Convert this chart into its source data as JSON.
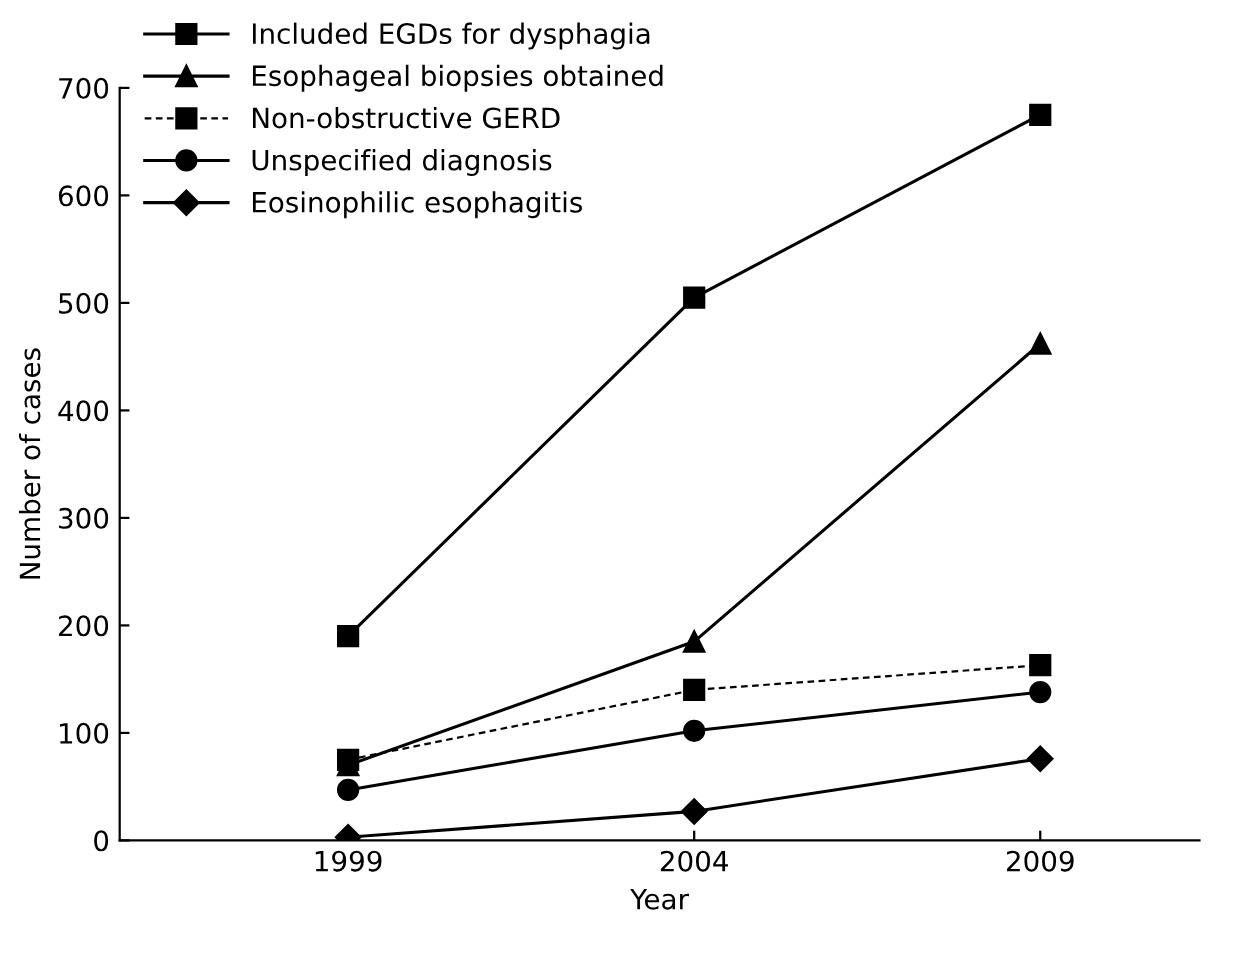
{
  "chart_data": {
    "type": "line",
    "xlabel": "Year",
    "ylabel": "Number of cases",
    "x": [
      1999,
      2004,
      2009
    ],
    "xlim": [
      1995.7,
      2011.3
    ],
    "xticks": [
      1999,
      2004,
      2009
    ],
    "ylim": [
      0,
      700
    ],
    "yticks": [
      0,
      100,
      200,
      300,
      400,
      500,
      600,
      700
    ],
    "grid": false,
    "legend": "top left",
    "series": [
      {
        "name": "Included EGDs for dysphagia",
        "color": "#000000",
        "marker": "square",
        "line_style": "solid",
        "values": [
          190,
          505,
          675
        ]
      },
      {
        "name": "Esophageal biopsies obtained",
        "color": "#000000",
        "marker": "triangle",
        "line_style": "solid",
        "values": [
          70,
          185,
          462
        ]
      },
      {
        "name": "Non-obstructive GERD",
        "color": "#000000",
        "marker": "square",
        "line_style": "dashed",
        "values": [
          75,
          140,
          163
        ]
      },
      {
        "name": "Unspecified diagnosis",
        "color": "#000000",
        "marker": "circle",
        "line_style": "solid",
        "values": [
          47,
          102,
          138
        ]
      },
      {
        "name": "Eosinophilic esophagitis",
        "color": "#000000",
        "marker": "diamond",
        "line_style": "solid",
        "values": [
          3,
          27,
          76
        ]
      }
    ]
  }
}
